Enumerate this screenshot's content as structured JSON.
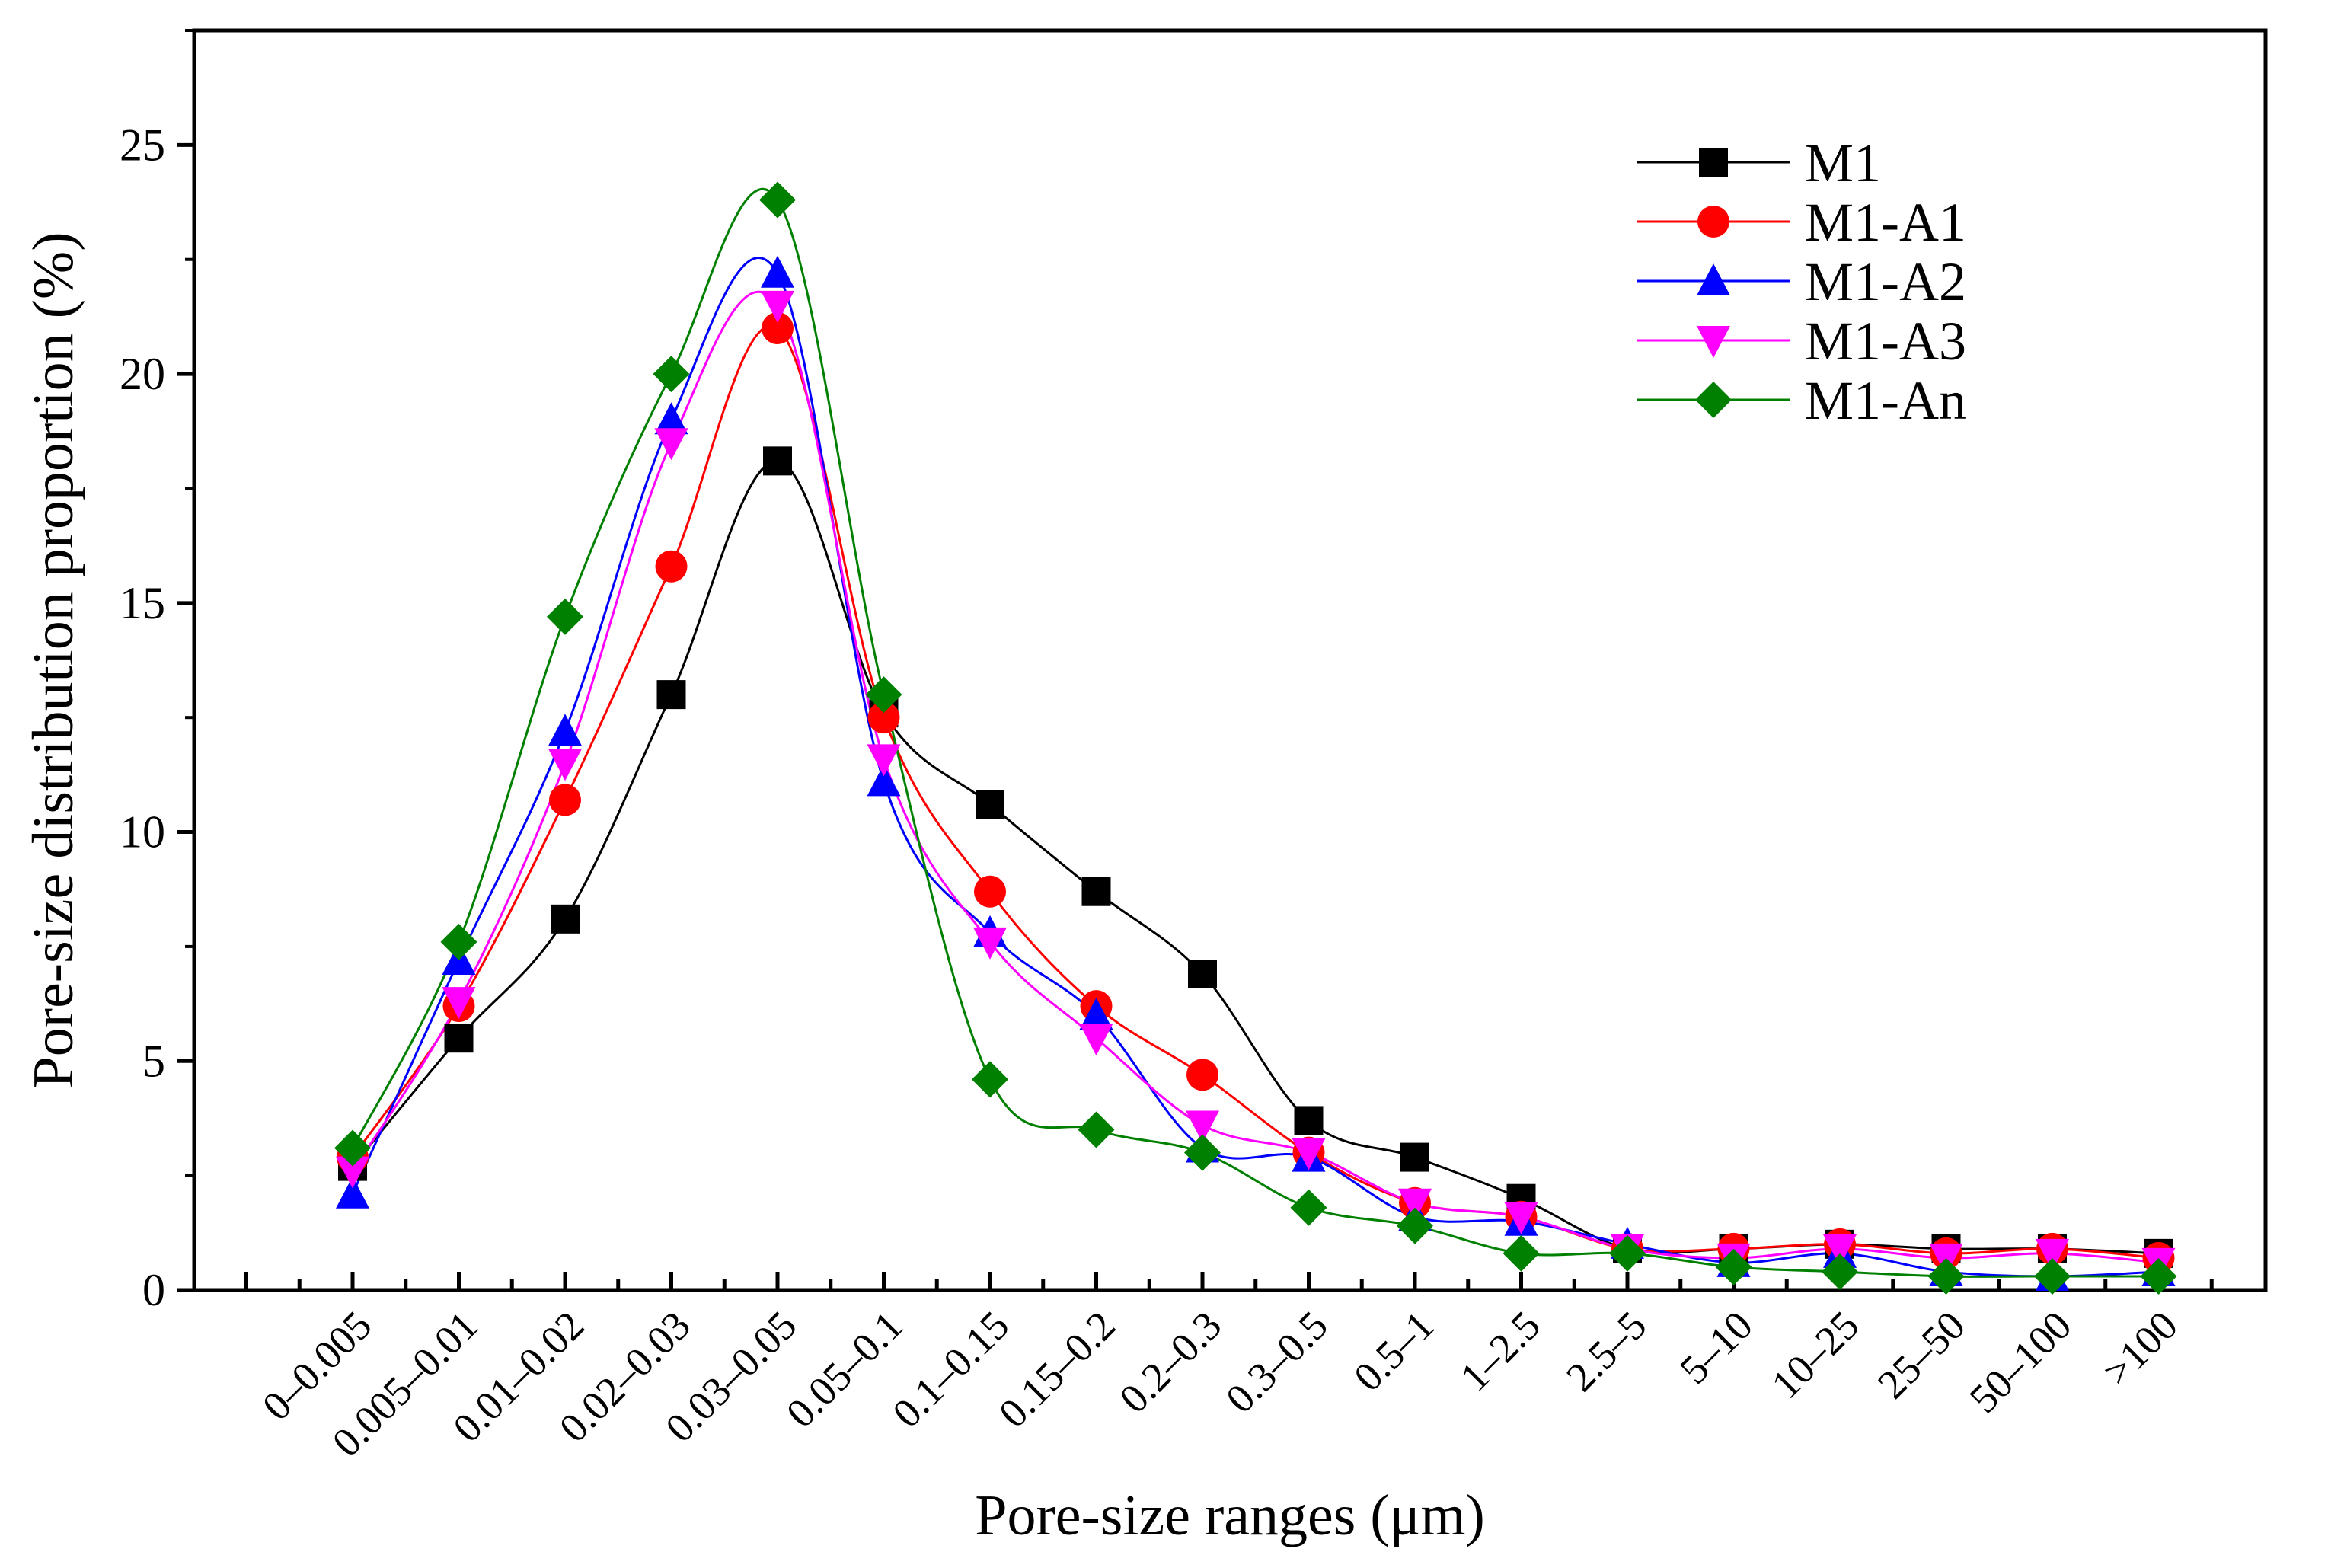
{
  "chart_data": {
    "type": "line",
    "title": "",
    "xlabel": "Pore-size ranges (μm)",
    "ylabel": "Pore-size distribution proportion (%)",
    "ylim": [
      0,
      27.5
    ],
    "yticks": [
      0,
      5,
      10,
      15,
      20,
      25
    ],
    "grid": false,
    "legend_position": "top-right",
    "smooth": true,
    "categories": [
      "0–0.005",
      "0.005–0.01",
      "0.01–0.02",
      "0.02–0.03",
      "0.03–0.05",
      "0.05–0.1",
      "0.1–0.15",
      "0.15–0.2",
      "0.2–0.3",
      "0.3–0.5",
      "0.5–1",
      "1–2.5",
      "2.5–5",
      "5–10",
      "10–25",
      "25–50",
      "50–100",
      ">100"
    ],
    "series": [
      {
        "name": "M1",
        "color": "#000000",
        "marker": "square",
        "values": [
          2.7,
          5.5,
          8.1,
          13.0,
          18.1,
          12.6,
          10.6,
          8.7,
          6.9,
          3.7,
          2.9,
          2.0,
          0.9,
          0.9,
          1.0,
          0.9,
          0.9,
          0.8
        ]
      },
      {
        "name": "M1-A1",
        "color": "#ff0000",
        "marker": "circle",
        "values": [
          2.9,
          6.2,
          10.7,
          15.8,
          21.0,
          12.5,
          8.7,
          6.2,
          4.7,
          3.0,
          1.9,
          1.6,
          0.9,
          0.9,
          1.0,
          0.8,
          0.9,
          0.7
        ]
      },
      {
        "name": "M1-A2",
        "color": "#0000ff",
        "marker": "triangle-up",
        "values": [
          2.1,
          7.2,
          12.2,
          19.0,
          22.2,
          11.1,
          7.8,
          6.0,
          3.1,
          2.9,
          1.6,
          1.5,
          1.0,
          0.6,
          0.8,
          0.4,
          0.3,
          0.4
        ]
      },
      {
        "name": "M1-A3",
        "color": "#ff00ff",
        "marker": "triangle-down",
        "values": [
          2.6,
          6.3,
          11.5,
          18.5,
          21.5,
          11.6,
          7.6,
          5.5,
          3.6,
          3.0,
          1.9,
          1.6,
          0.9,
          0.7,
          0.9,
          0.7,
          0.8,
          0.6
        ]
      },
      {
        "name": "M1-An",
        "color": "#008000",
        "marker": "diamond",
        "values": [
          3.1,
          7.6,
          14.7,
          20.0,
          23.8,
          13.0,
          4.6,
          3.5,
          3.0,
          1.8,
          1.4,
          0.8,
          0.8,
          0.5,
          0.4,
          0.3,
          0.3,
          0.3
        ]
      }
    ]
  }
}
